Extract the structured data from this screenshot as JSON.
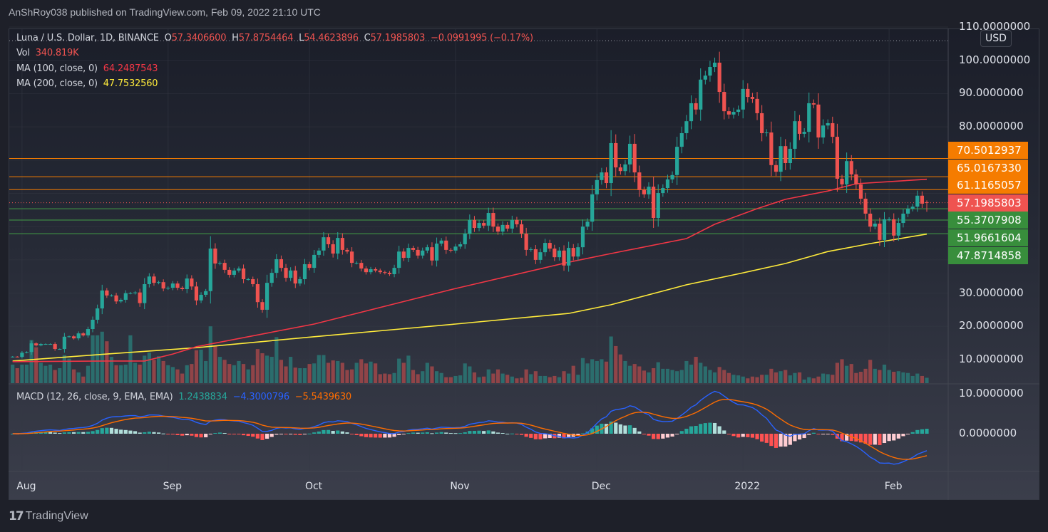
{
  "header": {
    "publish_line": "AnShRoy038 published on TradingView.com, Feb 09, 2022 21:10 UTC"
  },
  "legend": {
    "symbol": "Luna / U.S. Dollar, 1D, BINANCE",
    "o_label": "O",
    "o": "57.3406600",
    "h_label": "H",
    "h": "57.8754464",
    "l_label": "L",
    "l": "54.4623896",
    "c_label": "C",
    "c": "57.1985803",
    "change": "−0.0991995 (−0.17%)",
    "vol_label": "Vol",
    "vol": "340.819K",
    "ma100_label": "MA (100, close, 0)",
    "ma100": "64.2487543",
    "ma200_label": "MA (200, close, 0)",
    "ma200": "47.7532560",
    "macd_label": "MACD (12, 26, close, 9, EMA, EMA)",
    "macd_hist": "1.2438834",
    "macd_line": "−4.3000796",
    "macd_signal": "−5.5439630"
  },
  "price_axis": {
    "currency": "USD",
    "ticks": [
      {
        "value": 110,
        "label": "110.0000000"
      },
      {
        "value": 100,
        "label": "100.0000000"
      },
      {
        "value": 90,
        "label": "90.0000000"
      },
      {
        "value": 80,
        "label": "80.0000000"
      },
      {
        "value": 30,
        "label": "30.0000000"
      },
      {
        "value": 20,
        "label": "20.0000000"
      },
      {
        "value": 10,
        "label": "10.0000000"
      }
    ],
    "badges": [
      {
        "label": "70.5012937",
        "color": "#f57c00"
      },
      {
        "label": "65.0167330",
        "color": "#f57c00"
      },
      {
        "label": "61.1165057",
        "color": "#f57c00"
      },
      {
        "label": "57.1985803",
        "color": "#ef5350"
      },
      {
        "label": "55.3707908",
        "color": "#388e3c"
      },
      {
        "label": "51.9661604",
        "color": "#388e3c"
      },
      {
        "label": "47.8714858",
        "color": "#388e3c"
      }
    ]
  },
  "macd_axis": {
    "ticks": [
      {
        "value": 10,
        "label": "10.0000000"
      },
      {
        "value": 0,
        "label": "0.0000000"
      }
    ]
  },
  "time_axis": [
    {
      "label": "Aug",
      "date": "2021-08-01"
    },
    {
      "label": "Sep",
      "date": "2021-09-01"
    },
    {
      "label": "Oct",
      "date": "2021-10-01"
    },
    {
      "label": "Nov",
      "date": "2021-11-01"
    },
    {
      "label": "Dec",
      "date": "2021-12-01"
    },
    {
      "label": "2022",
      "date": "2022-01-01"
    },
    {
      "label": "Feb",
      "date": "2022-02-01"
    }
  ],
  "branding": {
    "logo_text": "TradingView"
  },
  "colors": {
    "up": "#26a69a",
    "down": "#ef5350",
    "ma100": "#f23645",
    "ma200": "#ffeb3b",
    "macd": "#2962ff",
    "signal": "#ff6d00",
    "resistance": "#f57c00",
    "support": "#43a047"
  },
  "chart_data": {
    "type": "candlestick",
    "interval": "1D",
    "scale": "linear",
    "ylim": [
      10,
      110
    ],
    "grid": true,
    "last_bar_date": "2022-02-09",
    "last_ohlc": {
      "open": 57.34066,
      "high": 57.8754464,
      "low": 54.4623896,
      "close": 57.1985803
    },
    "close": [
      10.9,
      10.8,
      12.1,
      12.3,
      14.9,
      14.3,
      14.7,
      14.7,
      14.7,
      13.2,
      13.2,
      16.9,
      17.0,
      16.4,
      17.9,
      17.3,
      19.2,
      22.0,
      25.4,
      30.8,
      29.3,
      29.3,
      27.5,
      28.0,
      30.0,
      30.0,
      30.2,
      27.0,
      32.7,
      35.0,
      33.1,
      33.3,
      31.4,
      31.6,
      32.9,
      31.6,
      31.2,
      34.4,
      32.0,
      27.8,
      29.5,
      30.6,
      43.4,
      38.9,
      39.1,
      37.0,
      35.5,
      36.8,
      37.4,
      34.2,
      34.2,
      32.7,
      27.3,
      25.0,
      33.1,
      36.1,
      40.2,
      37.6,
      34.6,
      36.8,
      32.9,
      34.2,
      38.7,
      37.6,
      41.5,
      42.8,
      46.8,
      44.7,
      41.9,
      46.6,
      43.0,
      42.5,
      39.1,
      39.1,
      37.4,
      36.3,
      37.2,
      36.8,
      36.3,
      36.1,
      35.7,
      37.6,
      42.5,
      40.6,
      43.6,
      43.0,
      41.3,
      42.8,
      43.8,
      39.8,
      44.9,
      45.8,
      43.0,
      42.8,
      44.0,
      44.7,
      47.9,
      52.0,
      49.6,
      51.1,
      50.3,
      54.1,
      50.0,
      48.5,
      50.5,
      49.4,
      52.0,
      50.7,
      47.9,
      43.0,
      43.2,
      40.0,
      42.3,
      45.1,
      43.4,
      40.8,
      42.8,
      38.3,
      43.6,
      41.0,
      43.8,
      50.0,
      51.5,
      59.7,
      64.0,
      66.3,
      63.1,
      75.1,
      67.8,
      66.7,
      68.7,
      74.9,
      66.3,
      61.0,
      59.7,
      62.0,
      52.6,
      60.1,
      61.6,
      64.2,
      65.5,
      74.0,
      78.1,
      81.7,
      87.1,
      85.2,
      94.2,
      95.4,
      98.0,
      99.3,
      90.5,
      84.7,
      83.7,
      84.5,
      85.2,
      91.4,
      89.0,
      88.4,
      84.1,
      78.1,
      78.3,
      68.5,
      66.5,
      74.2,
      69.1,
      73.4,
      81.7,
      77.9,
      78.5,
      87.1,
      86.7,
      76.8,
      80.4,
      81.1,
      77.0,
      64.4,
      62.7,
      69.7,
      65.7,
      62.7,
      58.4,
      53.9,
      50.0,
      50.9,
      46.0,
      52.2,
      52.2,
      47.3,
      51.1,
      53.9,
      55.4,
      56.0,
      59.3,
      56.9,
      57.2
    ],
    "volume_relative_pct": [
      31,
      25,
      31,
      31,
      72,
      60,
      34,
      29,
      31,
      22,
      25,
      47,
      41,
      23,
      18,
      11,
      29,
      80,
      80,
      86,
      70,
      44,
      30,
      30,
      31,
      80,
      34,
      31,
      46,
      51,
      39,
      45,
      37,
      30,
      27,
      23,
      16,
      30,
      32,
      55,
      56,
      37,
      95,
      62,
      44,
      39,
      32,
      30,
      37,
      32,
      23,
      30,
      57,
      50,
      46,
      44,
      77,
      39,
      28,
      44,
      26,
      25,
      25,
      32,
      33,
      47,
      47,
      34,
      38,
      37,
      34,
      22,
      23,
      34,
      40,
      33,
      36,
      33,
      15,
      16,
      15,
      17,
      41,
      34,
      46,
      22,
      15,
      20,
      34,
      28,
      20,
      17,
      10,
      10,
      12,
      13,
      33,
      28,
      18,
      10,
      11,
      23,
      16,
      23,
      16,
      14,
      11,
      8,
      9,
      23,
      15,
      20,
      12,
      12,
      10,
      12,
      10,
      20,
      16,
      29,
      14,
      42,
      33,
      40,
      37,
      40,
      36,
      78,
      62,
      48,
      37,
      29,
      32,
      28,
      21,
      18,
      25,
      35,
      24,
      24,
      22,
      20,
      22,
      37,
      31,
      44,
      34,
      28,
      22,
      18,
      27,
      22,
      17,
      14,
      13,
      11,
      8,
      11,
      10,
      14,
      14,
      24,
      18,
      20,
      22,
      13,
      17,
      18,
      6,
      10,
      8,
      11,
      16,
      15,
      14,
      34,
      40,
      29,
      32,
      17,
      19,
      24,
      39,
      24,
      22,
      31,
      22,
      19,
      20,
      18,
      17,
      12,
      16,
      12,
      9
    ],
    "ma100": [
      [
        "2021-07-30",
        9.4
      ],
      [
        "2021-08-19",
        9.6
      ],
      [
        "2021-08-27",
        9.6
      ],
      [
        "2021-09-02",
        11.7
      ],
      [
        "2021-09-07",
        13.9
      ],
      [
        "2021-09-18",
        16.9
      ],
      [
        "2021-10-02",
        20.7
      ],
      [
        "2021-11-01",
        31.4
      ],
      [
        "2021-11-25",
        39.3
      ],
      [
        "2021-12-04",
        41.9
      ],
      [
        "2021-12-20",
        46.4
      ],
      [
        "2021-12-26",
        50.7
      ],
      [
        "2022-01-04",
        55.4
      ],
      [
        "2022-01-10",
        58.2
      ],
      [
        "2022-01-19",
        60.7
      ],
      [
        "2022-01-25",
        62.9
      ],
      [
        "2022-02-09",
        64.25
      ]
    ],
    "ma200": [
      [
        "2021-07-30",
        9.6
      ],
      [
        "2021-08-19",
        11.7
      ],
      [
        "2021-09-07",
        13.6
      ],
      [
        "2021-10-02",
        16.9
      ],
      [
        "2021-11-01",
        20.7
      ],
      [
        "2021-11-25",
        23.9
      ],
      [
        "2021-12-04",
        26.5
      ],
      [
        "2021-12-20",
        32.5
      ],
      [
        "2022-01-01",
        36.1
      ],
      [
        "2022-01-10",
        38.9
      ],
      [
        "2022-01-19",
        42.5
      ],
      [
        "2022-01-28",
        44.9
      ],
      [
        "2022-02-09",
        47.75
      ]
    ],
    "levels": [
      {
        "value": 70.5012937,
        "kind": "resistance"
      },
      {
        "value": 65.016733,
        "kind": "resistance"
      },
      {
        "value": 61.1165057,
        "kind": "resistance"
      },
      {
        "value": 55.3707908,
        "kind": "support"
      },
      {
        "value": 51.9661604,
        "kind": "support"
      },
      {
        "value": 47.8714858,
        "kind": "support"
      },
      {
        "value": 57.1985803,
        "kind": "last-price"
      },
      {
        "value": 105.9,
        "kind": "high-marker"
      }
    ],
    "macd": {
      "fast": 12,
      "slow": 26,
      "signal": 9,
      "ylim": [
        -8,
        12
      ]
    }
  }
}
